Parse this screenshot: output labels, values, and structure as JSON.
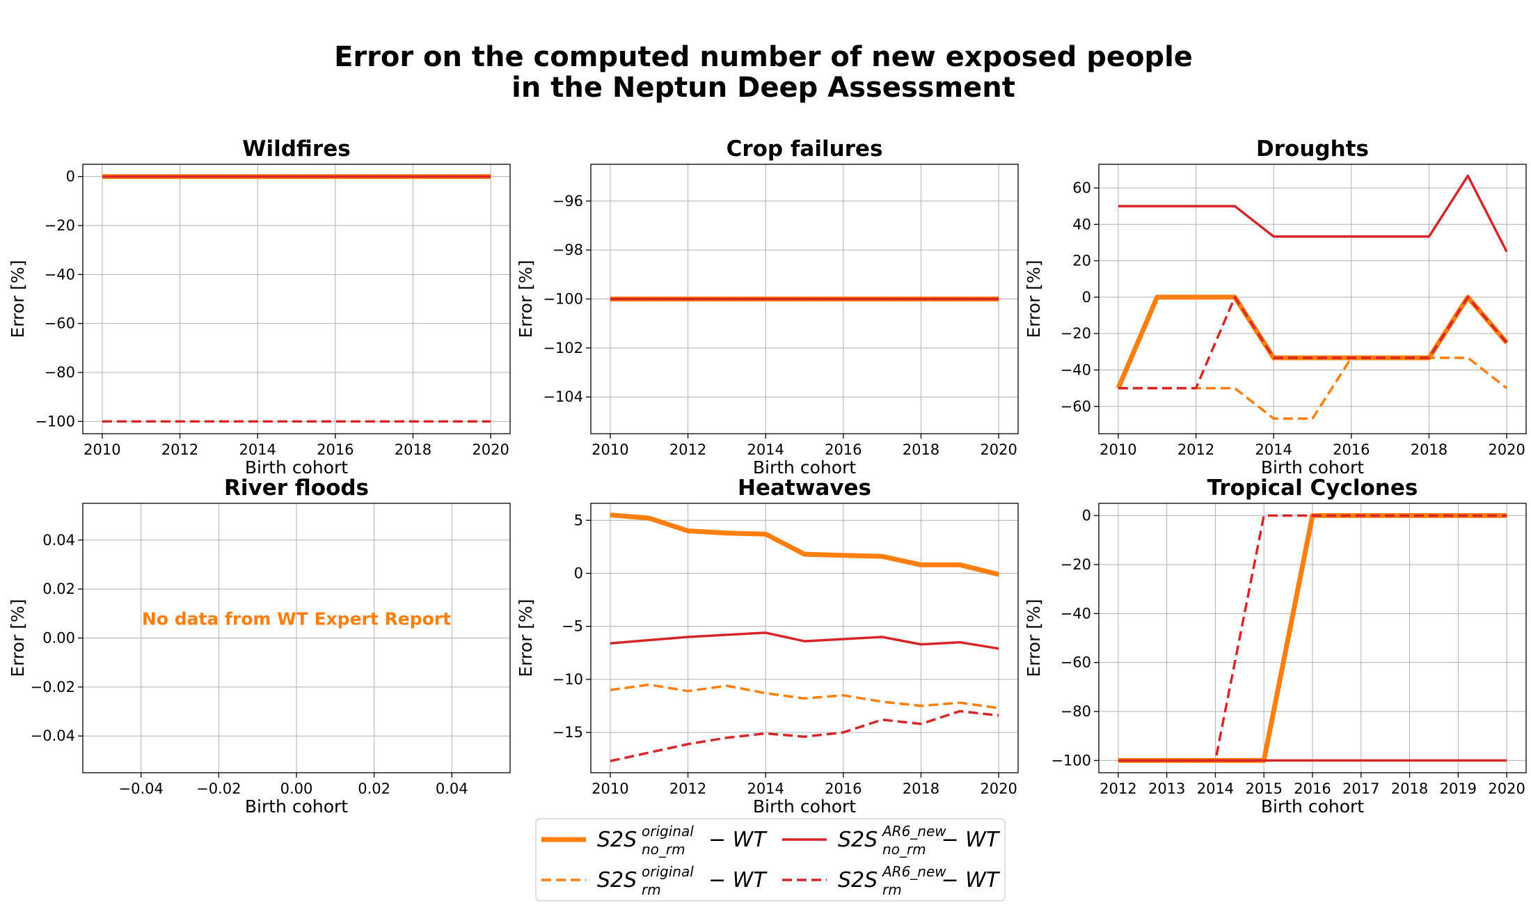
{
  "figure": {
    "title_line1": "Error on the computed number of new exposed people",
    "title_line2": "in the Neptun Deep Assessment"
  },
  "colors": {
    "orange": "#ff7f0e",
    "red": "#d62728"
  },
  "series_styles": [
    {
      "key": "s_orig_norm",
      "color": "#ff7f0e",
      "dash": "solid",
      "width": 7
    },
    {
      "key": "s_orig_rm",
      "color": "#ff7f0e",
      "dash": "dashed",
      "width": 3.5
    },
    {
      "key": "s_ar6_norm",
      "color": "#d62728",
      "dash": "solid",
      "width": 3.5
    },
    {
      "key": "s_ar6_rm",
      "color": "#d62728",
      "dash": "dashed",
      "width": 3.5
    }
  ],
  "legend": {
    "entries": [
      {
        "key": "s_orig_norm",
        "base": "S2S",
        "sup": "original",
        "sub": "no_rm",
        "tail": " − WT"
      },
      {
        "key": "s_orig_rm",
        "base": "S2S",
        "sup": "original",
        "sub": "rm",
        "tail": " − WT"
      },
      {
        "key": "s_ar6_norm",
        "base": "S2S",
        "sup": "AR6_new",
        "sub": "no_rm",
        "tail": " − WT"
      },
      {
        "key": "s_ar6_rm",
        "base": "S2S",
        "sup": "AR6_new",
        "sub": "rm",
        "tail": " − WT"
      }
    ]
  },
  "chart_data": [
    {
      "type": "line",
      "title": "Wildfires",
      "xlabel": "Birth cohort",
      "ylabel": "Error [%]",
      "xlim": [
        2009.5,
        2020.5
      ],
      "ylim": [
        -105,
        5
      ],
      "xticks": [
        2010,
        2012,
        2014,
        2016,
        2018,
        2020
      ],
      "yticks": [
        0,
        -20,
        -40,
        -60,
        -80,
        -100
      ],
      "grid": true,
      "x": [
        2010,
        2011,
        2012,
        2013,
        2014,
        2015,
        2016,
        2017,
        2018,
        2019,
        2020
      ],
      "series": [
        {
          "key": "s_orig_norm",
          "values": [
            0,
            0,
            0,
            0,
            0,
            0,
            0,
            0,
            0,
            0,
            0
          ]
        },
        {
          "key": "s_orig_rm",
          "values": [
            0,
            0,
            0,
            0,
            0,
            0,
            0,
            0,
            0,
            0,
            0
          ]
        },
        {
          "key": "s_ar6_norm",
          "values": [
            0,
            0,
            0,
            0,
            0,
            0,
            0,
            0,
            0,
            0,
            0
          ]
        },
        {
          "key": "s_ar6_rm",
          "values": [
            -100,
            -100,
            -100,
            -100,
            -100,
            -100,
            -100,
            -100,
            -100,
            -100,
            -100
          ]
        }
      ]
    },
    {
      "type": "line",
      "title": "Crop failures",
      "xlabel": "Birth cohort",
      "ylabel": "Error [%]",
      "xlim": [
        2009.5,
        2020.5
      ],
      "ylim": [
        -105.5,
        -94.5
      ],
      "xticks": [
        2010,
        2012,
        2014,
        2016,
        2018,
        2020
      ],
      "yticks": [
        -96,
        -98,
        -100,
        -102,
        -104
      ],
      "grid": true,
      "x": [
        2010,
        2011,
        2012,
        2013,
        2014,
        2015,
        2016,
        2017,
        2018,
        2019,
        2020
      ],
      "series": [
        {
          "key": "s_orig_norm",
          "values": [
            -100,
            -100,
            -100,
            -100,
            -100,
            -100,
            -100,
            -100,
            -100,
            -100,
            -100
          ]
        },
        {
          "key": "s_orig_rm",
          "values": [
            -100,
            -100,
            -100,
            -100,
            -100,
            -100,
            -100,
            -100,
            -100,
            -100,
            -100
          ]
        },
        {
          "key": "s_ar6_norm",
          "values": [
            -100,
            -100,
            -100,
            -100,
            -100,
            -100,
            -100,
            -100,
            -100,
            -100,
            -100
          ]
        },
        {
          "key": "s_ar6_rm",
          "values": [
            -100,
            -100,
            -100,
            -100,
            -100,
            -100,
            -100,
            -100,
            -100,
            -100,
            -100
          ]
        }
      ]
    },
    {
      "type": "line",
      "title": "Droughts",
      "xlabel": "Birth cohort",
      "ylabel": "Error [%]",
      "xlim": [
        2009.5,
        2020.5
      ],
      "ylim": [
        -75,
        73
      ],
      "xticks": [
        2010,
        2012,
        2014,
        2016,
        2018,
        2020
      ],
      "yticks": [
        60,
        40,
        20,
        0,
        -20,
        -40,
        -60
      ],
      "grid": true,
      "x": [
        2010,
        2011,
        2012,
        2013,
        2014,
        2015,
        2016,
        2017,
        2018,
        2019,
        2020
      ],
      "series": [
        {
          "key": "s_orig_norm",
          "values": [
            -50,
            0,
            0,
            0,
            -33.3,
            -33.3,
            -33.3,
            -33.3,
            -33.3,
            0,
            -25
          ]
        },
        {
          "key": "s_orig_rm",
          "values": [
            -50,
            -50,
            -50,
            -50,
            -66.7,
            -66.7,
            -33.3,
            -33.3,
            -33.3,
            -33.3,
            -50
          ]
        },
        {
          "key": "s_ar6_norm",
          "values": [
            50,
            50,
            50,
            50,
            33.3,
            33.3,
            33.3,
            33.3,
            33.3,
            66.7,
            25
          ]
        },
        {
          "key": "s_ar6_rm",
          "values": [
            -50,
            -50,
            -50,
            0,
            -33.3,
            -33.3,
            -33.3,
            -33.3,
            -33.3,
            0,
            -25
          ]
        }
      ]
    },
    {
      "type": "line",
      "title": "River floods",
      "xlabel": "Birth cohort",
      "ylabel": "Error [%]",
      "xlim": [
        -0.055,
        0.055
      ],
      "ylim": [
        -0.055,
        0.055
      ],
      "xticks": [
        -0.04,
        -0.02,
        0.0,
        0.02,
        0.04
      ],
      "xticklabels": [
        "−0.04",
        "−0.02",
        "0.00",
        "0.02",
        "0.04"
      ],
      "yticks": [
        0.04,
        0.02,
        0.0,
        -0.02,
        -0.04
      ],
      "yticklabels": [
        "0.04",
        "0.02",
        "0.00",
        "−0.02",
        "−0.04"
      ],
      "grid": true,
      "annotation": "No data from WT Expert Report",
      "x": [],
      "series": []
    },
    {
      "type": "line",
      "title": "Heatwaves",
      "xlabel": "Birth cohort",
      "ylabel": "Error [%]",
      "xlim": [
        2009.5,
        2020.5
      ],
      "ylim": [
        -18.8,
        6.6
      ],
      "xticks": [
        2010,
        2012,
        2014,
        2016,
        2018,
        2020
      ],
      "yticks": [
        5,
        0,
        -5,
        -10,
        -15
      ],
      "grid": true,
      "x": [
        2010,
        2011,
        2012,
        2013,
        2014,
        2015,
        2016,
        2017,
        2018,
        2019,
        2020
      ],
      "series": [
        {
          "key": "s_orig_norm",
          "values": [
            5.5,
            5.2,
            4.0,
            3.8,
            3.7,
            1.8,
            1.7,
            1.6,
            0.8,
            0.8,
            -0.1
          ]
        },
        {
          "key": "s_orig_rm",
          "values": [
            -11.0,
            -10.5,
            -11.1,
            -10.6,
            -11.3,
            -11.8,
            -11.5,
            -12.1,
            -12.5,
            -12.2,
            -12.7
          ]
        },
        {
          "key": "s_ar6_norm",
          "values": [
            -6.6,
            -6.3,
            -6.0,
            -5.8,
            -5.6,
            -6.4,
            -6.2,
            -6.0,
            -6.7,
            -6.5,
            -7.1
          ]
        },
        {
          "key": "s_ar6_rm",
          "values": [
            -17.7,
            -16.9,
            -16.1,
            -15.5,
            -15.1,
            -15.4,
            -15.0,
            -13.8,
            -14.2,
            -13.0,
            -13.4
          ]
        }
      ]
    },
    {
      "type": "line",
      "title": "Tropical Cyclones",
      "xlabel": "Birth cohort",
      "ylabel": "Error [%]",
      "xlim": [
        2011.6,
        2020.4
      ],
      "ylim": [
        -105,
        5
      ],
      "xticks": [
        2012,
        2013,
        2014,
        2015,
        2016,
        2017,
        2018,
        2019,
        2020
      ],
      "yticks": [
        0,
        -20,
        -40,
        -60,
        -80,
        -100
      ],
      "grid": true,
      "x": [
        2012,
        2013,
        2014,
        2015,
        2016,
        2017,
        2018,
        2019,
        2020
      ],
      "series": [
        {
          "key": "s_orig_norm",
          "values": [
            -100,
            -100,
            -100,
            -100,
            0,
            0,
            0,
            0,
            0
          ]
        },
        {
          "key": "s_orig_rm",
          "values": [
            -100,
            -100,
            -100,
            -100,
            0,
            0,
            0,
            0,
            0
          ]
        },
        {
          "key": "s_ar6_norm",
          "values": [
            -100,
            -100,
            -100,
            -100,
            -100,
            -100,
            -100,
            -100,
            -100
          ]
        },
        {
          "key": "s_ar6_rm",
          "values": [
            -100,
            -100,
            -100,
            0,
            0,
            0,
            0,
            0,
            0
          ]
        }
      ]
    }
  ]
}
